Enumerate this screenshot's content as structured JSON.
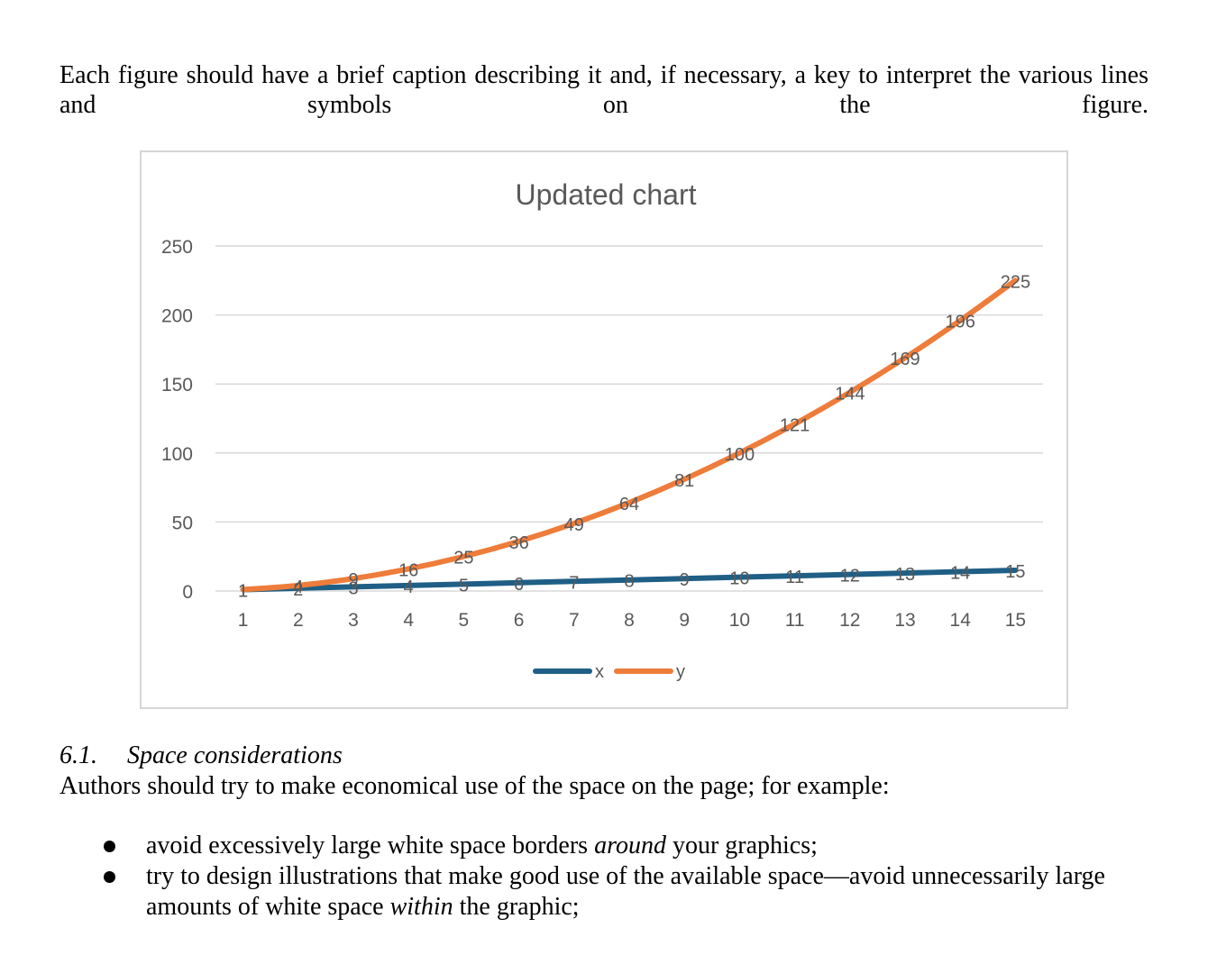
{
  "intro": "Each figure should have a brief caption describing it and, if necessary, a key to interpret the various lines and symbols on the figure.",
  "chart_data": {
    "type": "line",
    "title": "Updated chart",
    "categories": [
      1,
      2,
      3,
      4,
      5,
      6,
      7,
      8,
      9,
      10,
      11,
      12,
      13,
      14,
      15
    ],
    "series": [
      {
        "name": "x",
        "color": "#1f5f86",
        "values": [
          1,
          2,
          3,
          4,
          5,
          6,
          7,
          8,
          9,
          10,
          11,
          12,
          13,
          14,
          15
        ]
      },
      {
        "name": "y",
        "color": "#ee7c3a",
        "values": [
          1,
          4,
          9,
          16,
          25,
          36,
          49,
          64,
          81,
          100,
          121,
          144,
          169,
          196,
          225
        ]
      }
    ],
    "yticks": [
      0,
      50,
      100,
      150,
      200,
      250
    ],
    "ylim": [
      0,
      250
    ],
    "grid": true,
    "legend": "bottom",
    "data_labels": true
  },
  "section": {
    "number": "6.1.",
    "title": "Space considerations",
    "body": "Authors should try to make economical use of the space on the page; for example:"
  },
  "bullets": [
    {
      "before": "avoid excessively large white space borders ",
      "em": "around",
      "after": " your graphics;"
    },
    {
      "before": "try to design illustrations that make good use of the available space—avoid unnecessarily large amounts of white space ",
      "em": "within",
      "after": " the graphic;"
    }
  ]
}
